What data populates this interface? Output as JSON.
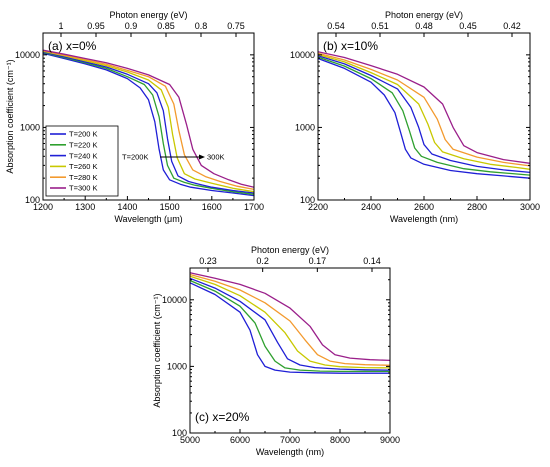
{
  "colors": {
    "T=200 K": "#1f1fd6",
    "T=220 K": "#2fa02f",
    "T=240 K": "#1f1fd6",
    "T=260 K": "#c8c800",
    "T=280 K": "#f39a2e",
    "T=300 K": "#9a1f8a"
  },
  "legend": [
    "T=200 K",
    "T=220 K",
    "T=240 K",
    "T=260 K",
    "T=280 K",
    "T=300 K"
  ],
  "chart_data": [
    {
      "type": "line",
      "panel_label": "(a) x=0%",
      "xlabel": "Wavelength (μm)",
      "ylabel": "Absorption coefficient (cm⁻¹)",
      "top_xlabel": "Photon energy (eV)",
      "xlim": [
        1200,
        1700
      ],
      "ylim": [
        100,
        20000
      ],
      "y_scale": "log",
      "x_ticks": [
        1200,
        1300,
        1400,
        1500,
        1600,
        1700
      ],
      "y_ticks": [
        100,
        1000,
        10000
      ],
      "y_tick_labels": [
        "100",
        "1000",
        "10000"
      ],
      "top_ticks": [
        "1",
        "0.95",
        "0.9",
        "0.85",
        "0.8",
        "0.75"
      ],
      "annotation": {
        "left": "T=200K",
        "right": "300K"
      },
      "legend_position": "bottom-left",
      "series": [
        {
          "name": "T=200 K",
          "x": [
            1200,
            1250,
            1300,
            1350,
            1400,
            1430,
            1450,
            1465,
            1475,
            1485,
            1500,
            1525,
            1550,
            1600,
            1650,
            1700
          ],
          "y": [
            10500,
            8900,
            7500,
            6200,
            4700,
            3500,
            2400,
            1200,
            500,
            260,
            190,
            165,
            150,
            135,
            125,
            115
          ]
        },
        {
          "name": "T=220 K",
          "x": [
            1200,
            1250,
            1300,
            1350,
            1400,
            1440,
            1460,
            1475,
            1485,
            1495,
            1510,
            1535,
            1560,
            1600,
            1650,
            1700
          ],
          "y": [
            10800,
            9200,
            7800,
            6500,
            5000,
            3900,
            2800,
            1400,
            600,
            300,
            200,
            175,
            160,
            145,
            130,
            120
          ]
        },
        {
          "name": "T=240 K",
          "x": [
            1200,
            1250,
            1300,
            1350,
            1400,
            1450,
            1470,
            1485,
            1495,
            1505,
            1520,
            1545,
            1570,
            1600,
            1650,
            1700
          ],
          "y": [
            11000,
            9400,
            8000,
            6800,
            5400,
            4000,
            3000,
            1700,
            700,
            340,
            215,
            180,
            165,
            150,
            135,
            125
          ]
        },
        {
          "name": "T=260 K",
          "x": [
            1200,
            1250,
            1300,
            1350,
            1400,
            1450,
            1480,
            1497,
            1507,
            1518,
            1535,
            1560,
            1600,
            1650,
            1700
          ],
          "y": [
            11200,
            9700,
            8300,
            7100,
            5800,
            4500,
            3300,
            1900,
            800,
            380,
            230,
            195,
            170,
            145,
            130
          ]
        },
        {
          "name": "T=280 K",
          "x": [
            1200,
            1250,
            1300,
            1350,
            1400,
            1450,
            1490,
            1510,
            1522,
            1535,
            1555,
            1585,
            1620,
            1660,
            1700
          ],
          "y": [
            11400,
            9900,
            8600,
            7400,
            6100,
            5000,
            3700,
            2100,
            900,
            420,
            260,
            210,
            180,
            155,
            140
          ]
        },
        {
          "name": "T=300 K",
          "x": [
            1200,
            1250,
            1300,
            1350,
            1400,
            1450,
            1500,
            1522,
            1540,
            1555,
            1575,
            1605,
            1640,
            1670,
            1700
          ],
          "y": [
            11600,
            10200,
            8900,
            7800,
            6500,
            5300,
            3900,
            2600,
            1100,
            500,
            300,
            230,
            190,
            165,
            150
          ]
        }
      ]
    },
    {
      "type": "line",
      "panel_label": "(b) x=10%",
      "xlabel": "Wavelength (nm)",
      "ylabel": "",
      "top_xlabel": "Photon energy (eV)",
      "xlim": [
        2200,
        3000
      ],
      "ylim": [
        100,
        20000
      ],
      "y_scale": "log",
      "x_ticks": [
        2200,
        2400,
        2600,
        2800,
        3000
      ],
      "y_ticks": [
        100,
        1000,
        10000
      ],
      "y_tick_labels": [
        "100",
        "1000",
        "10000"
      ],
      "top_ticks": [
        "0.54",
        "0.51",
        "0.48",
        "0.45",
        "0.42"
      ],
      "series": [
        {
          "name": "T=200 K",
          "x": [
            2200,
            2300,
            2400,
            2450,
            2490,
            2510,
            2530,
            2550,
            2600,
            2700,
            2800,
            2900,
            3000
          ],
          "y": [
            8900,
            6500,
            4200,
            2800,
            1600,
            900,
            500,
            380,
            310,
            255,
            230,
            215,
            200
          ]
        },
        {
          "name": "T=220 K",
          "x": [
            2200,
            2300,
            2400,
            2480,
            2520,
            2545,
            2565,
            2590,
            2650,
            2750,
            2850,
            3000
          ],
          "y": [
            9300,
            7000,
            4700,
            3000,
            1700,
            900,
            520,
            400,
            330,
            270,
            245,
            220
          ]
        },
        {
          "name": "T=240 K",
          "x": [
            2200,
            2300,
            2400,
            2500,
            2550,
            2580,
            2600,
            2630,
            2700,
            2800,
            2900,
            3000
          ],
          "y": [
            9700,
            7500,
            5200,
            3400,
            1900,
            1000,
            580,
            430,
            350,
            290,
            260,
            240
          ]
        },
        {
          "name": "T=260 K",
          "x": [
            2200,
            2300,
            2400,
            2500,
            2580,
            2615,
            2640,
            2670,
            2750,
            2850,
            2950,
            3000
          ],
          "y": [
            10100,
            8000,
            5700,
            3900,
            2100,
            1100,
            620,
            460,
            370,
            310,
            280,
            265
          ]
        },
        {
          "name": "T=280 K",
          "x": [
            2200,
            2300,
            2400,
            2500,
            2600,
            2650,
            2680,
            2710,
            2800,
            2900,
            3000
          ],
          "y": [
            10500,
            8500,
            6300,
            4500,
            2600,
            1300,
            680,
            500,
            390,
            330,
            295
          ]
        },
        {
          "name": "T=300 K",
          "x": [
            2200,
            2300,
            2400,
            2500,
            2600,
            2670,
            2710,
            2750,
            2800,
            2900,
            3000
          ],
          "y": [
            11000,
            9200,
            7100,
            5400,
            3600,
            2100,
            1000,
            560,
            450,
            360,
            320
          ]
        }
      ]
    },
    {
      "type": "line",
      "panel_label": "(c) x=20%",
      "xlabel": "Wavelength (nm)",
      "ylabel": "Absorption coefficient (cm⁻¹)",
      "top_xlabel": "Photon energy (eV)",
      "xlim": [
        5000,
        9000
      ],
      "ylim": [
        100,
        30000
      ],
      "y_scale": "log",
      "x_ticks": [
        5000,
        6000,
        7000,
        8000,
        9000
      ],
      "y_ticks": [
        100,
        1000,
        10000
      ],
      "y_tick_labels": [
        "100",
        "1000",
        "10000"
      ],
      "top_ticks": [
        "0.23",
        "0.2",
        "0.17",
        "0.14"
      ],
      "series": [
        {
          "name": "T=200 K",
          "x": [
            5000,
            5500,
            6000,
            6200,
            6350,
            6500,
            6700,
            7000,
            7500,
            8000,
            8500,
            9000
          ],
          "y": [
            18000,
            12000,
            6500,
            3500,
            1500,
            1000,
            880,
            820,
            800,
            790,
            790,
            790
          ]
        },
        {
          "name": "T=220 K",
          "x": [
            5000,
            5500,
            6000,
            6300,
            6500,
            6700,
            6900,
            7200,
            7600,
            8000,
            8500,
            9000
          ],
          "y": [
            19500,
            13500,
            8000,
            4500,
            2000,
            1200,
            950,
            880,
            850,
            840,
            840,
            840
          ]
        },
        {
          "name": "T=240 K",
          "x": [
            5000,
            5500,
            6000,
            6500,
            6750,
            6950,
            7200,
            7500,
            8000,
            8500,
            9000
          ],
          "y": [
            21000,
            15000,
            9500,
            5000,
            2300,
            1300,
            1050,
            960,
            910,
            890,
            880
          ]
        },
        {
          "name": "T=260 K",
          "x": [
            5000,
            5500,
            6000,
            6500,
            6900,
            7150,
            7400,
            7700,
            8000,
            8500,
            9000
          ],
          "y": [
            22500,
            17000,
            11500,
            6500,
            3200,
            1700,
            1200,
            1050,
            990,
            960,
            950
          ]
        },
        {
          "name": "T=280 K",
          "x": [
            5000,
            5500,
            6000,
            6500,
            7000,
            7300,
            7550,
            7800,
            8100,
            8500,
            9000
          ],
          "y": [
            24000,
            19000,
            14000,
            9000,
            4800,
            2500,
            1500,
            1200,
            1100,
            1060,
            1040
          ]
        },
        {
          "name": "T=300 K",
          "x": [
            5000,
            5500,
            6000,
            6500,
            7000,
            7400,
            7650,
            7900,
            8200,
            8600,
            9000
          ],
          "y": [
            25500,
            21000,
            17000,
            12500,
            7500,
            4000,
            2100,
            1500,
            1330,
            1260,
            1230
          ]
        }
      ]
    }
  ]
}
